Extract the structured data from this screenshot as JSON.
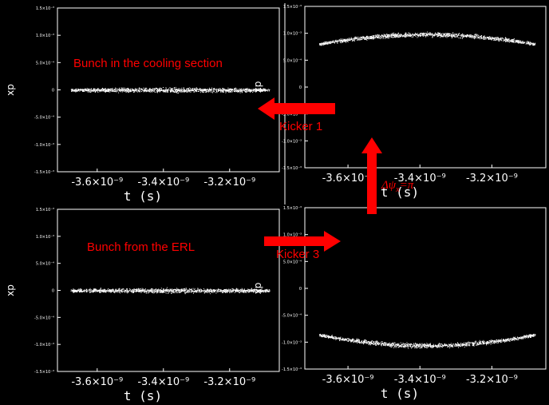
{
  "colors": {
    "background": "#000000",
    "frame": "#ffffff",
    "bunch": "#ffffff",
    "annotation": "#ff0000"
  },
  "axis_text": {
    "xlabel": "t (s)",
    "ylabel": "xp",
    "xticks": [
      "-3.6×10⁻⁹",
      "-3.4×10⁻⁹",
      "-3.2×10⁻⁹"
    ],
    "yticks": [
      "1.5×10⁻³",
      "1.0×10⁻³",
      "5.0×10⁻⁴",
      "0",
      "-5.0×10⁻⁴",
      "-1.0×10⁻³",
      "-1.5×10⁻³"
    ]
  },
  "annotations": {
    "cooling_label": "Bunch in the cooling section",
    "erl_label": "Bunch from the ERL",
    "kicker1": "Kicker 1",
    "kicker3": "Kicker 3",
    "phase_prefix": "Δψ",
    "phase_sub": "x",
    "phase_suffix": "=π"
  },
  "chart_data": [
    {
      "type": "scatter",
      "panel": "top-left",
      "xlabel": "t (s)",
      "ylabel": "xp",
      "xlim": [
        -3.72e-09,
        -3.05e-09
      ],
      "ylim": [
        -0.0015,
        0.0015
      ],
      "bunch": {
        "t_start": -3.68e-09,
        "t_end": -3.08e-09,
        "xp_center_ends": 0.0,
        "xp_center_mid": 0.0,
        "xp_halfwidth": 6e-05
      }
    },
    {
      "type": "scatter",
      "panel": "top-right",
      "xlabel": "t (s)",
      "ylabel": "xp",
      "xlim": [
        -3.72e-09,
        -3.05e-09
      ],
      "ylim": [
        -0.0015,
        0.0015
      ],
      "bunch": {
        "t_start": -3.68e-09,
        "t_end": -3.08e-09,
        "xp_center_ends": 0.0008,
        "xp_center_mid": 0.00098,
        "xp_halfwidth": 6e-05
      }
    },
    {
      "type": "scatter",
      "panel": "bottom-left",
      "xlabel": "t (s)",
      "ylabel": "xp",
      "xlim": [
        -3.72e-09,
        -3.05e-09
      ],
      "ylim": [
        -0.0015,
        0.0015
      ],
      "bunch": {
        "t_start": -3.68e-09,
        "t_end": -3.08e-09,
        "xp_center_ends": 0.0,
        "xp_center_mid": 0.0,
        "xp_halfwidth": 6e-05
      }
    },
    {
      "type": "scatter",
      "panel": "bottom-right",
      "xlabel": "t (s)",
      "ylabel": "xp",
      "xlim": [
        -3.72e-09,
        -3.05e-09
      ],
      "ylim": [
        -0.0015,
        0.0015
      ],
      "bunch": {
        "t_start": -3.68e-09,
        "t_end": -3.08e-09,
        "xp_center_ends": -0.00086,
        "xp_center_mid": -0.00106,
        "xp_halfwidth": 6e-05
      }
    }
  ]
}
